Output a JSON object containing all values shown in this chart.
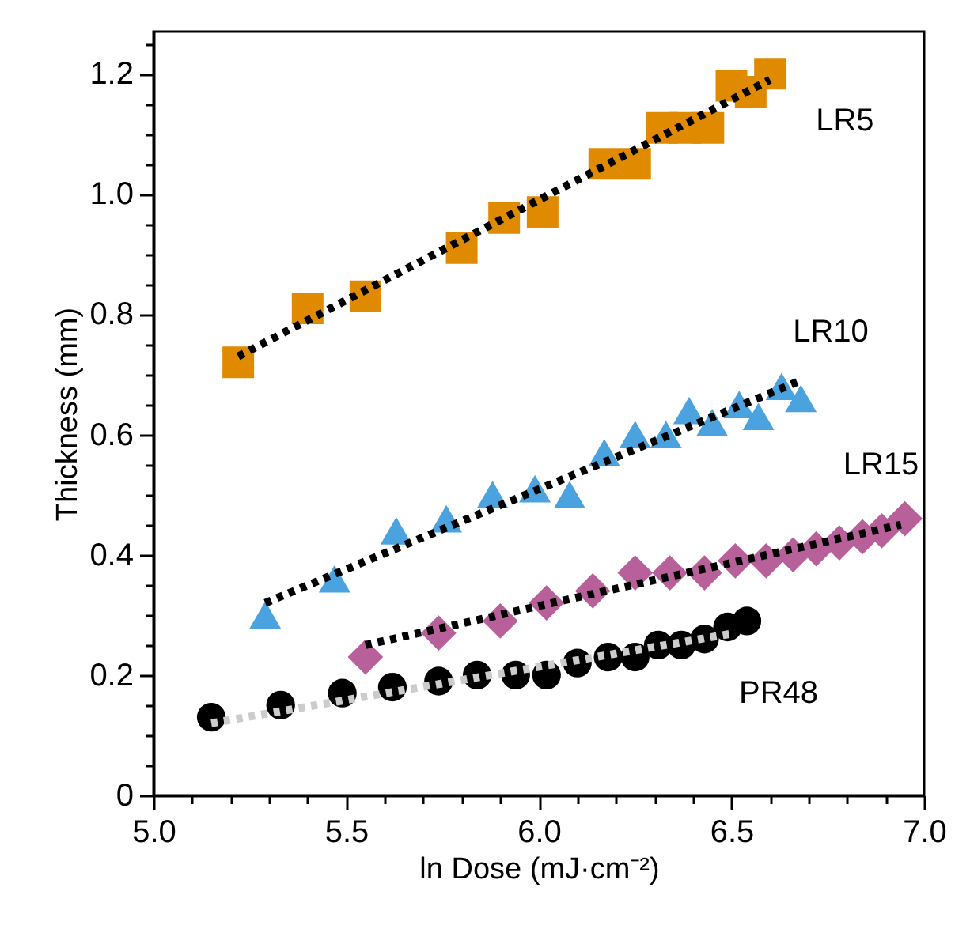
{
  "chart_data": {
    "type": "scatter",
    "xlabel": "ln Dose (mJ·cm⁻²)",
    "ylabel": "Thickness (mm)",
    "xlim": [
      5,
      7
    ],
    "ylim": [
      0,
      1.27
    ],
    "xticks": [
      {
        "value": 5,
        "label": "5.0"
      },
      {
        "value": 5.1,
        "label": null
      },
      {
        "value": 5.2,
        "label": null
      },
      {
        "value": 5.3,
        "label": null
      },
      {
        "value": 5.4,
        "label": null
      },
      {
        "value": 5.5,
        "label": "5.5"
      },
      {
        "value": 5.6,
        "label": null
      },
      {
        "value": 5.7,
        "label": null
      },
      {
        "value": 5.8,
        "label": null
      },
      {
        "value": 5.9,
        "label": null
      },
      {
        "value": 6,
        "label": "6.0"
      },
      {
        "value": 6.1,
        "label": null
      },
      {
        "value": 6.2,
        "label": null
      },
      {
        "value": 6.3,
        "label": null
      },
      {
        "value": 6.4,
        "label": null
      },
      {
        "value": 6.5,
        "label": "6.5"
      },
      {
        "value": 6.6,
        "label": null
      },
      {
        "value": 6.7,
        "label": null
      },
      {
        "value": 6.8,
        "label": null
      },
      {
        "value": 6.9,
        "label": null
      },
      {
        "value": 7,
        "label": "7.0"
      }
    ],
    "yticks": [
      0,
      {
        "value": 0.05,
        "label": null
      },
      {
        "value": 0.1,
        "label": null
      },
      {
        "value": 0.15,
        "label": null
      },
      0.2,
      {
        "value": 0.25,
        "label": null
      },
      {
        "value": 0.3,
        "label": null
      },
      {
        "value": 0.35,
        "label": null
      },
      0.4,
      {
        "value": 0.45,
        "label": null
      },
      {
        "value": 0.5,
        "label": null
      },
      {
        "value": 0.55,
        "label": null
      },
      0.6,
      {
        "value": 0.65,
        "label": null
      },
      {
        "value": 0.7,
        "label": null
      },
      {
        "value": 0.75,
        "label": null
      },
      0.8,
      {
        "value": 0.85,
        "label": null
      },
      {
        "value": 0.9,
        "label": null
      },
      {
        "value": 0.95,
        "label": null
      },
      {
        "value": 1,
        "label": "1.0"
      },
      {
        "value": 1.05,
        "label": null
      },
      {
        "value": 1.1,
        "label": null
      },
      {
        "value": 1.15,
        "label": null
      },
      {
        "value": 1.2,
        "label": "1.2"
      },
      {
        "value": 1.25,
        "label": null
      }
    ],
    "series": [
      {
        "type": "line",
        "color": "#000000",
        "line_style": "dotted",
        "marker": "none",
        "x": [
          5.22,
          6.6
        ],
        "values": [
          0.73,
          1.19
        ]
      },
      {
        "type": "scatter",
        "name": "LR5",
        "color": "#e08a00",
        "marker": "square",
        "x": [
          5.22,
          5.4,
          5.55,
          5.8,
          5.91,
          6.01,
          6.17,
          6.25,
          6.32,
          6.38,
          6.44,
          6.5,
          6.55,
          6.6
        ],
        "values": [
          0.72,
          0.81,
          0.83,
          0.91,
          0.96,
          0.97,
          1.05,
          1.05,
          1.11,
          1.11,
          1.11,
          1.18,
          1.17,
          1.2
        ]
      },
      {
        "type": "scatter",
        "name": "LR10",
        "color": "#4aa3df",
        "marker": "triangle",
        "x": [
          5.29,
          5.47,
          5.63,
          5.76,
          5.88,
          5.99,
          6.08,
          6.17,
          6.25,
          6.33,
          6.39,
          6.45,
          6.52,
          6.57,
          6.63,
          6.68
        ],
        "values": [
          0.3,
          0.36,
          0.44,
          0.46,
          0.5,
          0.51,
          0.5,
          0.57,
          0.6,
          0.6,
          0.64,
          0.62,
          0.65,
          0.63,
          0.68,
          0.66
        ]
      },
      {
        "type": "line",
        "color": "#000000",
        "line_style": "dotted",
        "marker": "none",
        "x": [
          5.29,
          6.68
        ],
        "values": [
          0.32,
          0.69
        ]
      },
      {
        "type": "scatter",
        "name": "LR15",
        "color": "#b8609a",
        "marker": "diamond",
        "x": [
          5.55,
          5.74,
          5.9,
          6.02,
          6.14,
          6.25,
          6.34,
          6.43,
          6.51,
          6.59,
          6.66,
          6.72,
          6.78,
          6.84,
          6.89,
          6.95
        ],
        "values": [
          0.23,
          0.27,
          0.29,
          0.32,
          0.34,
          0.37,
          0.37,
          0.37,
          0.39,
          0.39,
          0.4,
          0.41,
          0.42,
          0.43,
          0.44,
          0.46
        ]
      },
      {
        "type": "line",
        "color": "#000000",
        "line_style": "dotted",
        "marker": "none",
        "x": [
          5.55,
          6.94
        ],
        "values": [
          0.25,
          0.45
        ]
      },
      {
        "type": "scatter",
        "name": "PR48",
        "color": "#000000",
        "marker": "circle",
        "x": [
          5.15,
          5.33,
          5.49,
          5.62,
          5.74,
          5.84,
          5.94,
          6.02,
          6.1,
          6.18,
          6.25,
          6.31,
          6.37,
          6.43,
          6.49,
          6.54
        ],
        "values": [
          0.13,
          0.15,
          0.17,
          0.18,
          0.19,
          0.2,
          0.2,
          0.2,
          0.22,
          0.23,
          0.23,
          0.25,
          0.25,
          0.26,
          0.28,
          0.29
        ]
      },
      {
        "type": "line",
        "color": "#cccccc",
        "line_style": "dotted",
        "marker": "none",
        "x": [
          5.15,
          6.51
        ],
        "values": [
          0.12,
          0.27
        ]
      }
    ]
  }
}
